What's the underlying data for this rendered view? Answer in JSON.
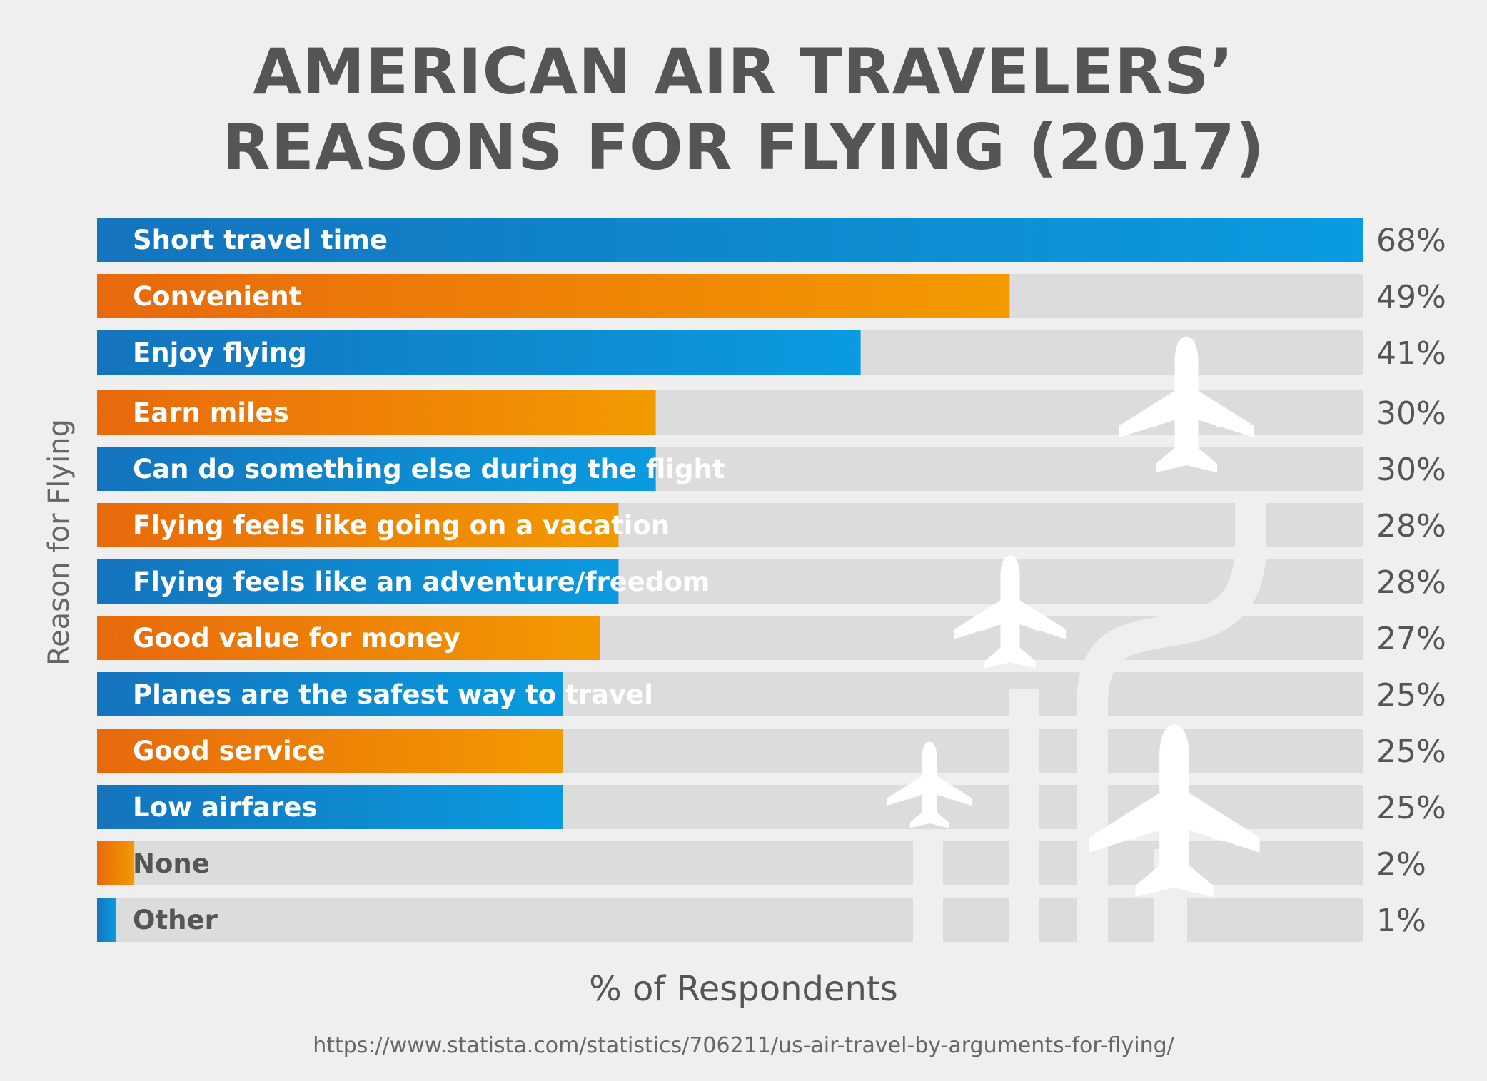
{
  "title_lines": [
    "AMERICAN AIR TRAVELERS’",
    "REASONS FOR FLYING (2017)"
  ],
  "source": "https://www.statista.com/statistics/706211/us-air-travel-by-arguments-for-flying/",
  "colors": {
    "background": "#efefef",
    "track": "#dcdcdc",
    "blue_start": "#1474bd",
    "blue_end": "#0a9be0",
    "orange_start": "#e8690c",
    "orange_end": "#f39a00",
    "text_dark": "#555555",
    "plane": "#ffffff"
  },
  "decoration_icons": [
    "airplane-icon",
    "airplane-icon",
    "airplane-icon",
    "airplane-icon"
  ],
  "chart_data": {
    "type": "bar",
    "orientation": "horizontal",
    "title": "AMERICAN AIR TRAVELERS’ REASONS FOR FLYING (2017)",
    "xlabel": "% of Respondents",
    "ylabel": "Reason for Flying",
    "xlim": [
      0,
      68
    ],
    "categories": [
      "Short travel time",
      "Convenient",
      "Enjoy flying",
      "Earn miles",
      "Can do something else during the flight",
      "Flying feels like going on a vacation",
      "Flying feels like an adventure/freedom",
      "Good value for money",
      "Planes are the safest way to travel",
      "Good service",
      "Low airfares",
      "None",
      "Other"
    ],
    "values": [
      68,
      49,
      41,
      30,
      30,
      28,
      28,
      27,
      25,
      25,
      25,
      2,
      1
    ],
    "value_labels": [
      "68%",
      "49%",
      "41%",
      "30%",
      "30%",
      "28%",
      "28%",
      "27%",
      "25%",
      "25%",
      "25%",
      "2%",
      "1%"
    ],
    "bar_colors": [
      "blue",
      "orange",
      "blue",
      "orange",
      "blue",
      "orange",
      "blue",
      "orange",
      "blue",
      "orange",
      "blue",
      "orange",
      "blue"
    ]
  }
}
